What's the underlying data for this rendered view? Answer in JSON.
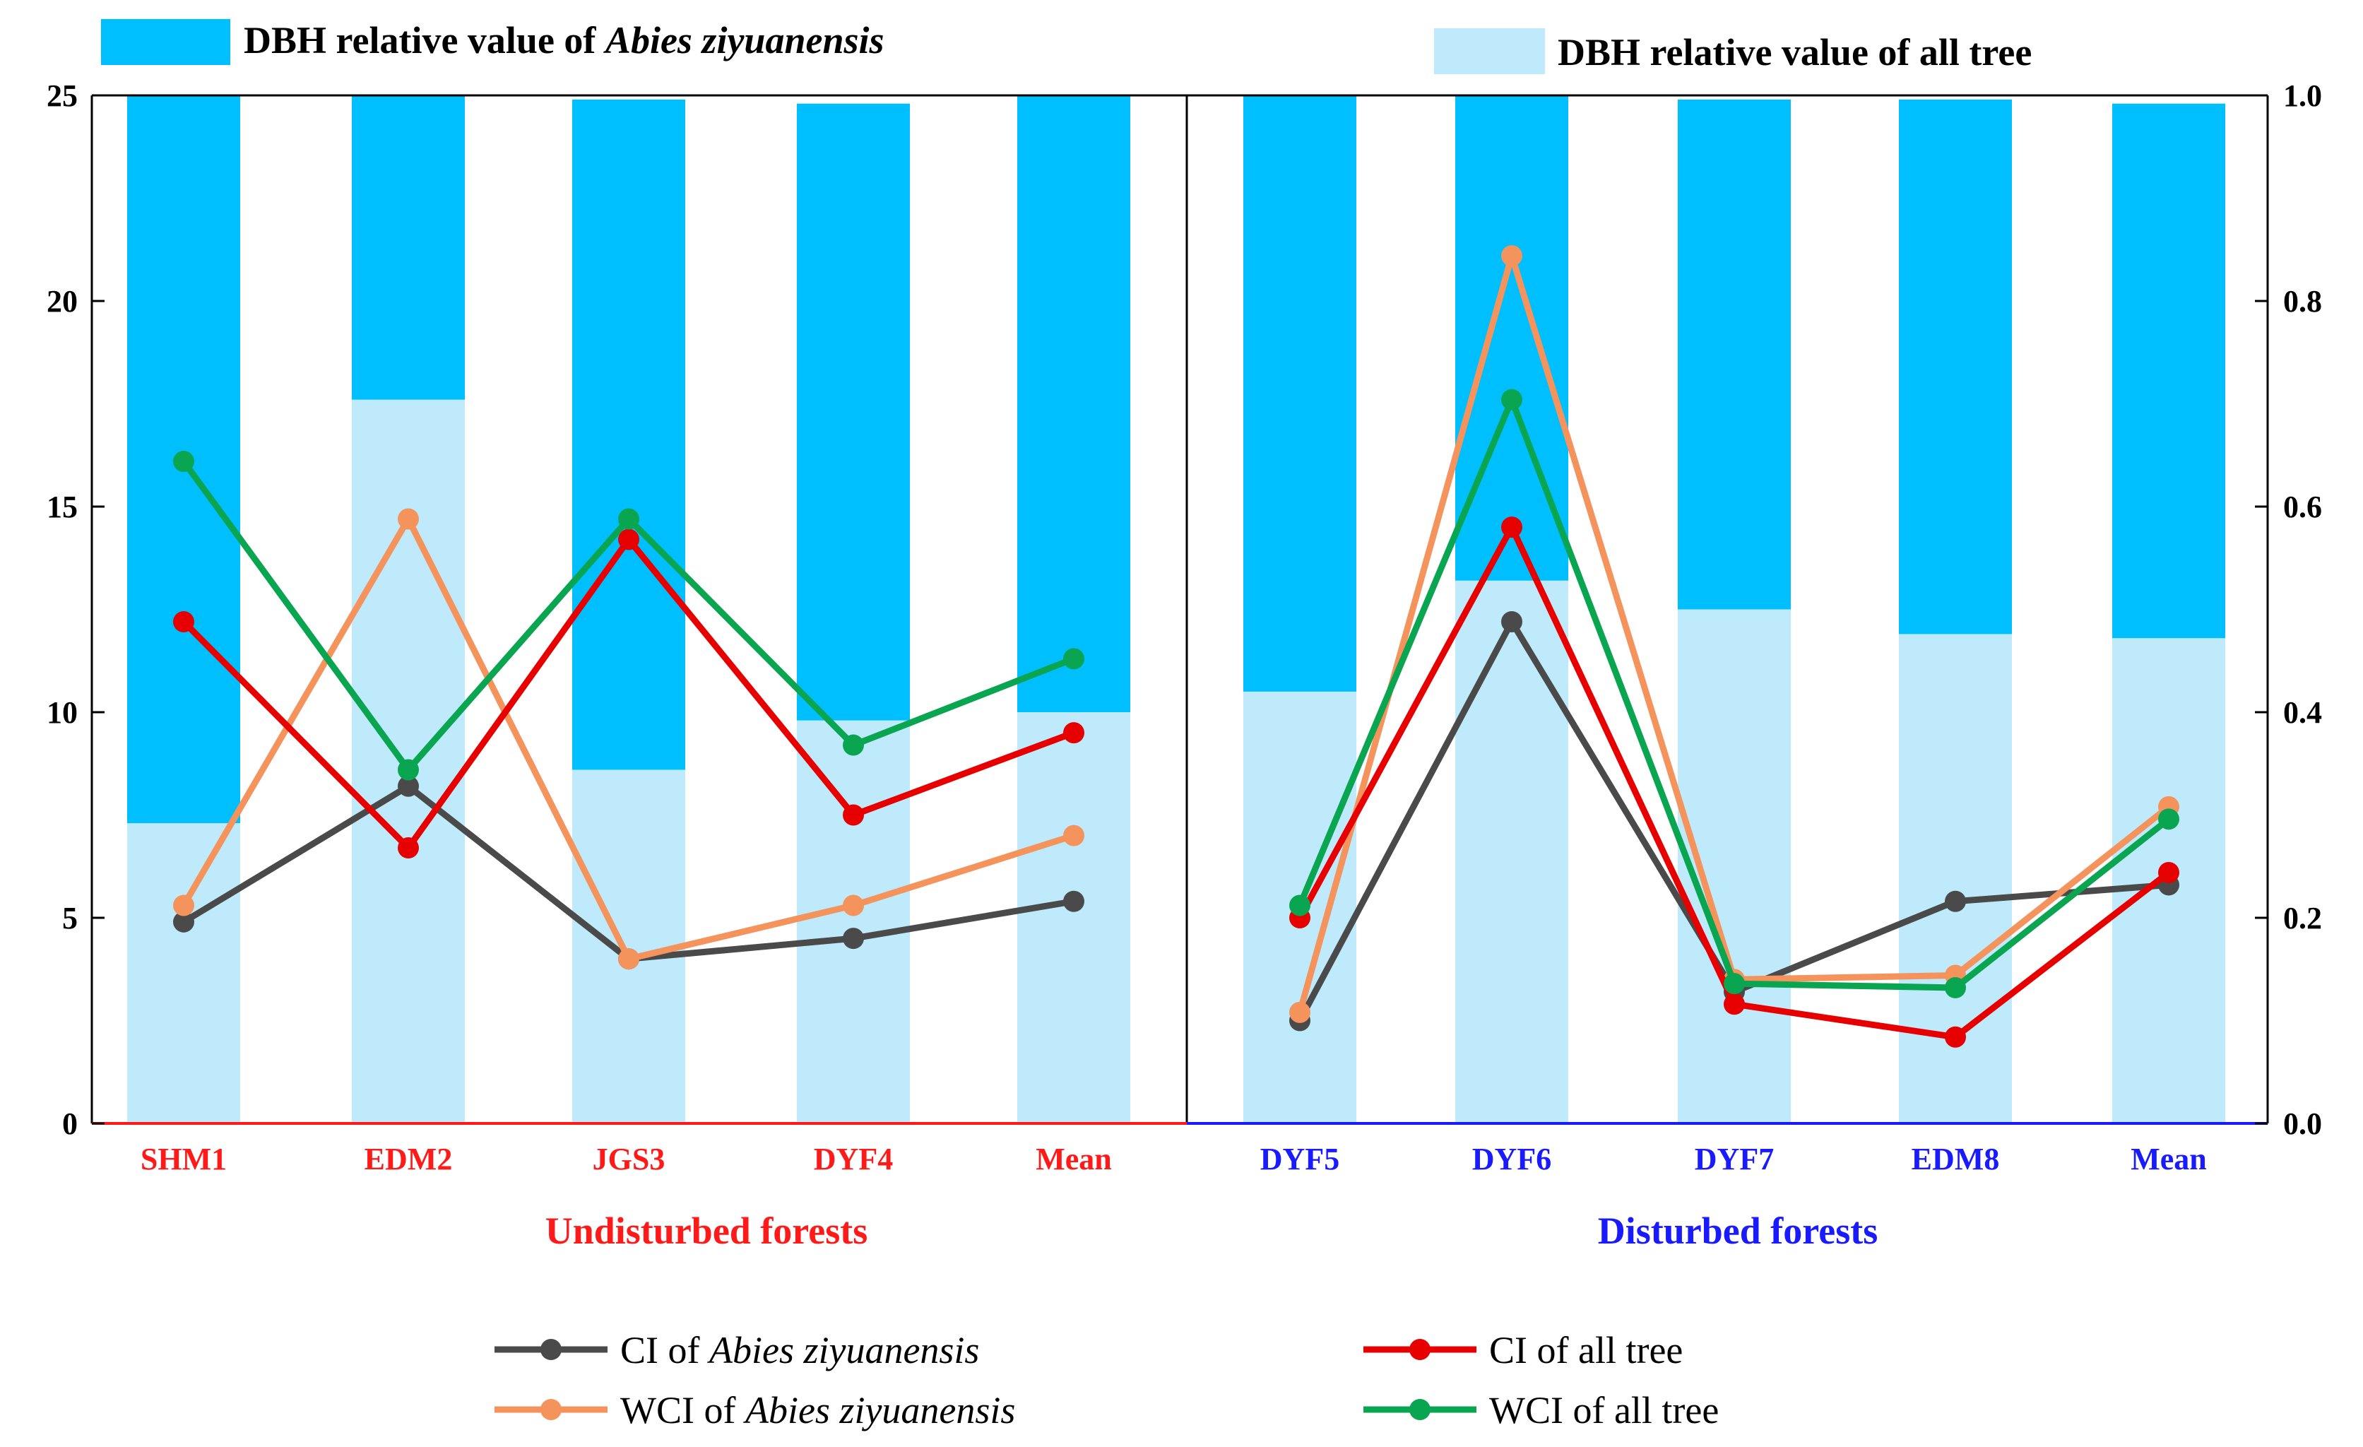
{
  "chart_data": {
    "type": "bar+line",
    "left_axis": {
      "ylim": [
        0,
        25
      ],
      "ticks": [
        "0",
        "5",
        "10",
        "15",
        "20",
        "25"
      ]
    },
    "right_axis": {
      "ylim": [
        0,
        1.0
      ],
      "ticks": [
        "0.0",
        "0.2",
        "0.4",
        "0.6",
        "0.8",
        "1.0"
      ]
    },
    "panels": [
      {
        "label": "Undisturbed forests",
        "color": "#ff1a1a",
        "categories": [
          "SHM1",
          "EDM2",
          "JGS3",
          "DYF4",
          "Mean"
        ],
        "bar_top": [
          25,
          25,
          24.9,
          24.8,
          25
        ],
        "bar_split": [
          7.3,
          17.6,
          8.6,
          9.8,
          10.0
        ],
        "lines": {
          "ci_abies": [
            4.9,
            8.2,
            4.0,
            4.5,
            5.4
          ],
          "ci_all": [
            12.2,
            6.7,
            14.2,
            7.5,
            9.5
          ],
          "wci_abies": [
            5.3,
            14.7,
            4.0,
            5.3,
            7.0
          ],
          "wci_all": [
            16.1,
            8.6,
            14.7,
            9.2,
            11.3
          ]
        }
      },
      {
        "label": "Disturbed forests",
        "color": "#1a1aff",
        "categories": [
          "DYF5",
          "DYF6",
          "DYF7",
          "EDM8",
          "Mean"
        ],
        "bar_top": [
          25,
          25,
          24.9,
          24.9,
          24.8
        ],
        "bar_split": [
          10.5,
          13.2,
          12.5,
          11.9,
          11.8
        ],
        "lines": {
          "ci_abies": [
            2.5,
            12.2,
            3.2,
            5.4,
            5.8
          ],
          "ci_all": [
            5.0,
            14.5,
            2.9,
            2.1,
            6.1
          ],
          "wci_abies": [
            2.7,
            21.1,
            3.5,
            3.6,
            7.7
          ],
          "wci_all": [
            5.3,
            17.6,
            3.4,
            3.3,
            7.4
          ]
        }
      }
    ],
    "bar_legend": {
      "abies": "DBH relative value of Abies ziyuanensis",
      "all": "DBH relative value of all tree"
    },
    "series_legend": [
      {
        "key": "ci_abies",
        "prefix": "CI of ",
        "italic": "Abies ziyuanensis",
        "color": "#4a4a4a"
      },
      {
        "key": "ci_all",
        "prefix": "CI of all tree",
        "italic": "",
        "color": "#e60000"
      },
      {
        "key": "wci_abies",
        "prefix": "WCI of ",
        "italic": "Abies ziyuanensis",
        "color": "#f5935c"
      },
      {
        "key": "wci_all",
        "prefix": "WCI of all tree",
        "italic": "",
        "color": "#0aa550"
      }
    ],
    "colors": {
      "dark_bar": "#00bfff",
      "light_bar": "#bfeafc"
    }
  },
  "legend_text": {
    "bar_abies_prefix": "DBH relative value of ",
    "bar_abies_italic": "Abies ziyuanensis",
    "bar_all": "DBH relative value of all tree"
  }
}
